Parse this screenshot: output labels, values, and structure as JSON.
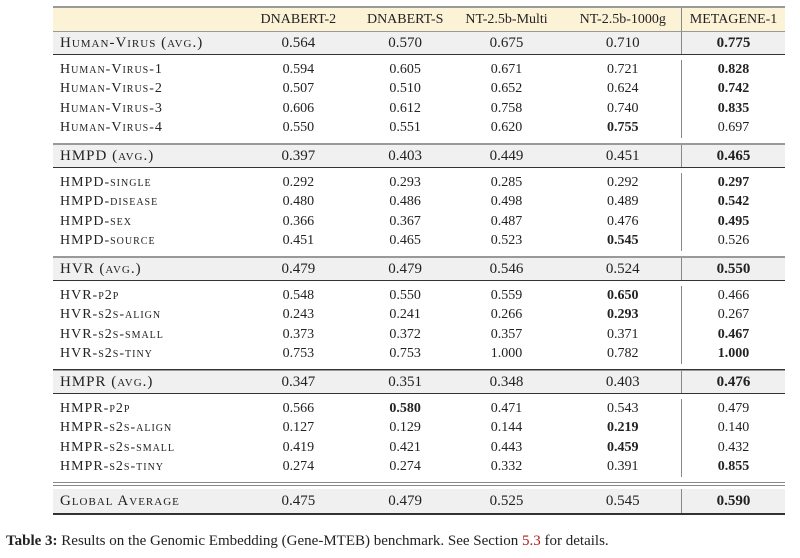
{
  "columns": [
    "DNABERT-2",
    "DNABERT-S",
    "NT-2.5b-Multi",
    "NT-2.5b-1000g",
    "METAGENE-1"
  ],
  "groups": [
    {
      "avg": {
        "label": "Human-Virus (avg.)",
        "values": [
          "0.564",
          "0.570",
          "0.675",
          "0.710",
          "0.775"
        ],
        "bold": [
          4
        ]
      },
      "rows": [
        {
          "label": "Human-Virus-1",
          "values": [
            "0.594",
            "0.605",
            "0.671",
            "0.721",
            "0.828"
          ],
          "bold": [
            4
          ]
        },
        {
          "label": "Human-Virus-2",
          "values": [
            "0.507",
            "0.510",
            "0.652",
            "0.624",
            "0.742"
          ],
          "bold": [
            4
          ]
        },
        {
          "label": "Human-Virus-3",
          "values": [
            "0.606",
            "0.612",
            "0.758",
            "0.740",
            "0.835"
          ],
          "bold": [
            4
          ]
        },
        {
          "label": "Human-Virus-4",
          "values": [
            "0.550",
            "0.551",
            "0.620",
            "0.755",
            "0.697"
          ],
          "bold": [
            3
          ]
        }
      ]
    },
    {
      "avg": {
        "label": "HMPD (avg.)",
        "values": [
          "0.397",
          "0.403",
          "0.449",
          "0.451",
          "0.465"
        ],
        "bold": [
          4
        ]
      },
      "rows": [
        {
          "label": "HMPD-single",
          "values": [
            "0.292",
            "0.293",
            "0.285",
            "0.292",
            "0.297"
          ],
          "bold": [
            4
          ]
        },
        {
          "label": "HMPD-disease",
          "values": [
            "0.480",
            "0.486",
            "0.498",
            "0.489",
            "0.542"
          ],
          "bold": [
            4
          ]
        },
        {
          "label": "HMPD-sex",
          "values": [
            "0.366",
            "0.367",
            "0.487",
            "0.476",
            "0.495"
          ],
          "bold": [
            4
          ]
        },
        {
          "label": "HMPD-source",
          "values": [
            "0.451",
            "0.465",
            "0.523",
            "0.545",
            "0.526"
          ],
          "bold": [
            3
          ]
        }
      ]
    },
    {
      "avg": {
        "label": "HVR (avg.)",
        "values": [
          "0.479",
          "0.479",
          "0.546",
          "0.524",
          "0.550"
        ],
        "bold": [
          4
        ]
      },
      "rows": [
        {
          "label": "HVR-p2p",
          "values": [
            "0.548",
            "0.550",
            "0.559",
            "0.650",
            "0.466"
          ],
          "bold": [
            3
          ]
        },
        {
          "label": "HVR-s2s-align",
          "values": [
            "0.243",
            "0.241",
            "0.266",
            "0.293",
            "0.267"
          ],
          "bold": [
            3
          ]
        },
        {
          "label": "HVR-s2s-small",
          "values": [
            "0.373",
            "0.372",
            "0.357",
            "0.371",
            "0.467"
          ],
          "bold": [
            4
          ]
        },
        {
          "label": "HVR-s2s-tiny",
          "values": [
            "0.753",
            "0.753",
            "1.000",
            "0.782",
            "1.000"
          ],
          "bold": [
            4
          ]
        }
      ]
    },
    {
      "avg": {
        "label": "HMPR (avg.)",
        "values": [
          "0.347",
          "0.351",
          "0.348",
          "0.403",
          "0.476"
        ],
        "bold": [
          4
        ]
      },
      "rows": [
        {
          "label": "HMPR-p2p",
          "values": [
            "0.566",
            "0.580",
            "0.471",
            "0.543",
            "0.479"
          ],
          "bold": [
            1
          ]
        },
        {
          "label": "HMPR-s2s-align",
          "values": [
            "0.127",
            "0.129",
            "0.144",
            "0.219",
            "0.140"
          ],
          "bold": [
            3
          ]
        },
        {
          "label": "HMPR-s2s-small",
          "values": [
            "0.419",
            "0.421",
            "0.443",
            "0.459",
            "0.432"
          ],
          "bold": [
            3
          ]
        },
        {
          "label": "HMPR-s2s-tiny",
          "values": [
            "0.274",
            "0.274",
            "0.332",
            "0.391",
            "0.855"
          ],
          "bold": [
            4
          ]
        }
      ]
    }
  ],
  "global": {
    "label": "Global Average",
    "values": [
      "0.475",
      "0.479",
      "0.525",
      "0.545",
      "0.590"
    ],
    "bold": [
      4
    ]
  },
  "caption": {
    "prefix": "Table 3:",
    "text": " Results on the Genomic Embedding (Gene-MTEB) benchmark. See Section ",
    "ref": "5.3",
    "suffix": " for details."
  }
}
